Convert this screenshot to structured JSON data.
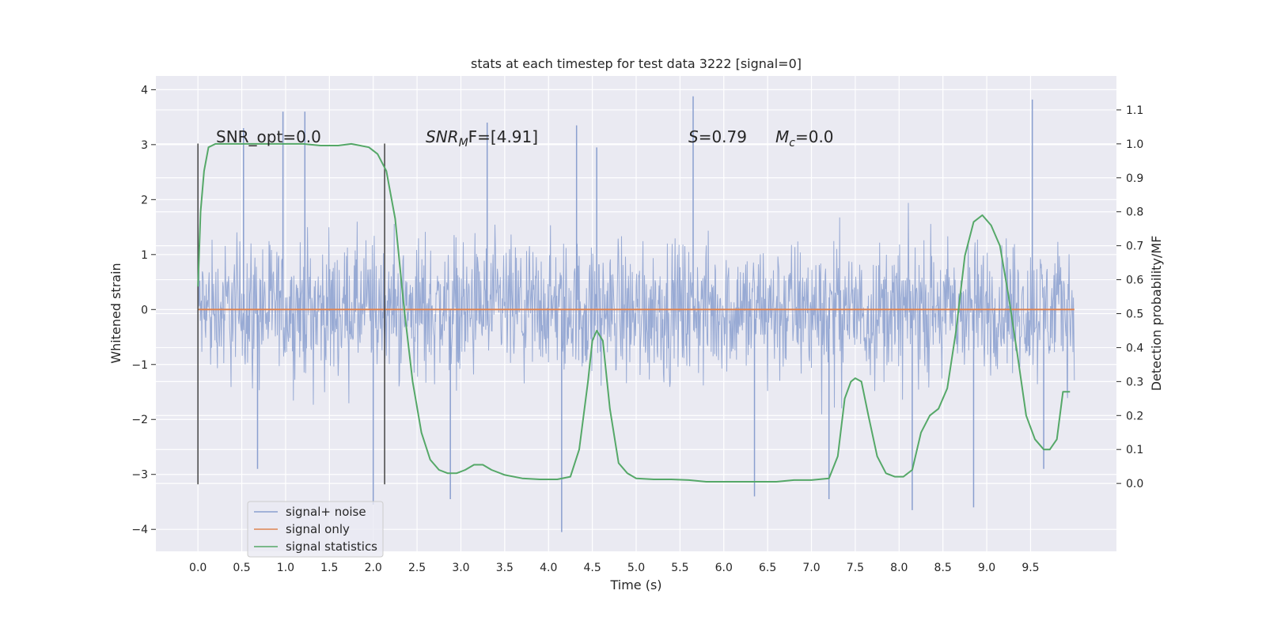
{
  "chart_data": {
    "type": "line",
    "title": "stats at each timestep for test data 3222 [signal=0]",
    "xlabel": "Time (s)",
    "ylabel_left": "Whitened strain",
    "ylabel_right": "Detection probability/MF",
    "xlim": [
      -0.48,
      10.48
    ],
    "ylim_left": [
      -4.4,
      4.25
    ],
    "ylim_right": [
      -0.2,
      1.2
    ],
    "x_ticks": [
      "0.0",
      "0.5",
      "1.0",
      "1.5",
      "2.0",
      "2.5",
      "3.0",
      "3.5",
      "4.0",
      "4.5",
      "5.0",
      "5.5",
      "6.0",
      "6.5",
      "7.0",
      "7.5",
      "8.0",
      "8.5",
      "9.0",
      "9.5"
    ],
    "x_tick_values": [
      0.0,
      0.5,
      1.0,
      1.5,
      2.0,
      2.5,
      3.0,
      3.5,
      4.0,
      4.5,
      5.0,
      5.5,
      6.0,
      6.5,
      7.0,
      7.5,
      8.0,
      8.5,
      9.0,
      9.5
    ],
    "y_ticks_left": [
      "−4",
      "−3",
      "−2",
      "−1",
      "0",
      "1",
      "2",
      "3",
      "4"
    ],
    "y_tick_values_left": [
      -4,
      -3,
      -2,
      -1,
      0,
      1,
      2,
      3,
      4
    ],
    "y_ticks_right": [
      "0.0",
      "0.1",
      "0.2",
      "0.3",
      "0.4",
      "0.5",
      "0.6",
      "0.7",
      "0.8",
      "0.9",
      "1.0",
      "1.1"
    ],
    "y_tick_values_right": [
      0.0,
      0.1,
      0.2,
      0.3,
      0.4,
      0.5,
      0.6,
      0.7,
      0.8,
      0.9,
      1.0,
      1.1
    ],
    "grid": true,
    "legend_position": "lower-left",
    "annotations": {
      "snr_opt": "SNR_opt=0.0",
      "snr_mf_main": "SNR",
      "snr_mf_sub": "M",
      "snr_mf_rest": "F=[4.91]",
      "s_sym": "S",
      "s_val": "=0.79",
      "mc_sym": "M",
      "mc_sub": "c",
      "mc_val": "=0.0"
    },
    "window_markers_x": [
      0.0,
      2.13
    ],
    "window_markers_range": [
      -3.18,
      3.02
    ],
    "noise_envelope": {
      "x_range": [
        0.0,
        10.0
      ],
      "typical_abs_max": 2.3,
      "spikes": [
        {
          "x": 0.52,
          "y": 3.3
        },
        {
          "x": 0.97,
          "y": 3.6
        },
        {
          "x": 1.22,
          "y": 3.6
        },
        {
          "x": 3.3,
          "y": 3.4
        },
        {
          "x": 4.32,
          "y": 3.35
        },
        {
          "x": 5.65,
          "y": 3.88
        },
        {
          "x": 9.52,
          "y": 3.82
        },
        {
          "x": 2.0,
          "y": -3.55
        },
        {
          "x": 2.88,
          "y": -3.45
        },
        {
          "x": 4.15,
          "y": -4.05
        },
        {
          "x": 6.35,
          "y": -3.4
        },
        {
          "x": 7.2,
          "y": -3.45
        },
        {
          "x": 8.15,
          "y": -3.65
        },
        {
          "x": 8.85,
          "y": -3.6
        },
        {
          "x": 4.55,
          "y": 2.95
        },
        {
          "x": 0.68,
          "y": -2.9
        },
        {
          "x": 9.65,
          "y": -2.9
        }
      ]
    },
    "series": [
      {
        "name": "signal+ noise",
        "color": "#8a9fcf",
        "kind": "noise"
      },
      {
        "name": "signal only",
        "color": "#dd8452",
        "x": [
          0.0,
          10.0
        ],
        "y": [
          0.0,
          0.0
        ]
      },
      {
        "name": "signal statistics",
        "color": "#55a868",
        "axis": "right",
        "x": [
          0.0,
          0.03,
          0.07,
          0.12,
          0.2,
          0.3,
          0.5,
          0.8,
          1.0,
          1.2,
          1.4,
          1.6,
          1.75,
          1.85,
          1.95,
          2.05,
          2.15,
          2.25,
          2.35,
          2.45,
          2.55,
          2.65,
          2.75,
          2.85,
          2.95,
          3.05,
          3.15,
          3.25,
          3.35,
          3.5,
          3.7,
          3.9,
          4.1,
          4.25,
          4.35,
          4.45,
          4.5,
          4.55,
          4.62,
          4.7,
          4.8,
          4.9,
          5.0,
          5.2,
          5.4,
          5.6,
          5.8,
          6.0,
          6.2,
          6.4,
          6.6,
          6.8,
          7.0,
          7.2,
          7.3,
          7.38,
          7.45,
          7.5,
          7.57,
          7.65,
          7.75,
          7.85,
          7.95,
          8.05,
          8.15,
          8.25,
          8.35,
          8.45,
          8.55,
          8.65,
          8.75,
          8.85,
          8.95,
          9.05,
          9.15,
          9.25,
          9.35,
          9.45,
          9.55,
          9.65,
          9.72,
          9.8,
          9.87,
          9.95
        ],
        "y": [
          0.58,
          0.8,
          0.92,
          0.99,
          1.0,
          1.0,
          1.0,
          1.0,
          1.0,
          1.0,
          0.995,
          0.995,
          1.0,
          0.995,
          0.99,
          0.97,
          0.92,
          0.78,
          0.52,
          0.3,
          0.15,
          0.07,
          0.04,
          0.03,
          0.03,
          0.04,
          0.055,
          0.055,
          0.04,
          0.025,
          0.015,
          0.012,
          0.012,
          0.02,
          0.1,
          0.3,
          0.42,
          0.45,
          0.42,
          0.22,
          0.06,
          0.03,
          0.015,
          0.012,
          0.012,
          0.01,
          0.005,
          0.005,
          0.005,
          0.005,
          0.005,
          0.01,
          0.01,
          0.015,
          0.08,
          0.25,
          0.3,
          0.31,
          0.3,
          0.2,
          0.08,
          0.03,
          0.02,
          0.02,
          0.04,
          0.15,
          0.2,
          0.22,
          0.28,
          0.45,
          0.67,
          0.77,
          0.79,
          0.76,
          0.7,
          0.55,
          0.38,
          0.2,
          0.13,
          0.1,
          0.1,
          0.13,
          0.27,
          0.27
        ]
      }
    ]
  }
}
